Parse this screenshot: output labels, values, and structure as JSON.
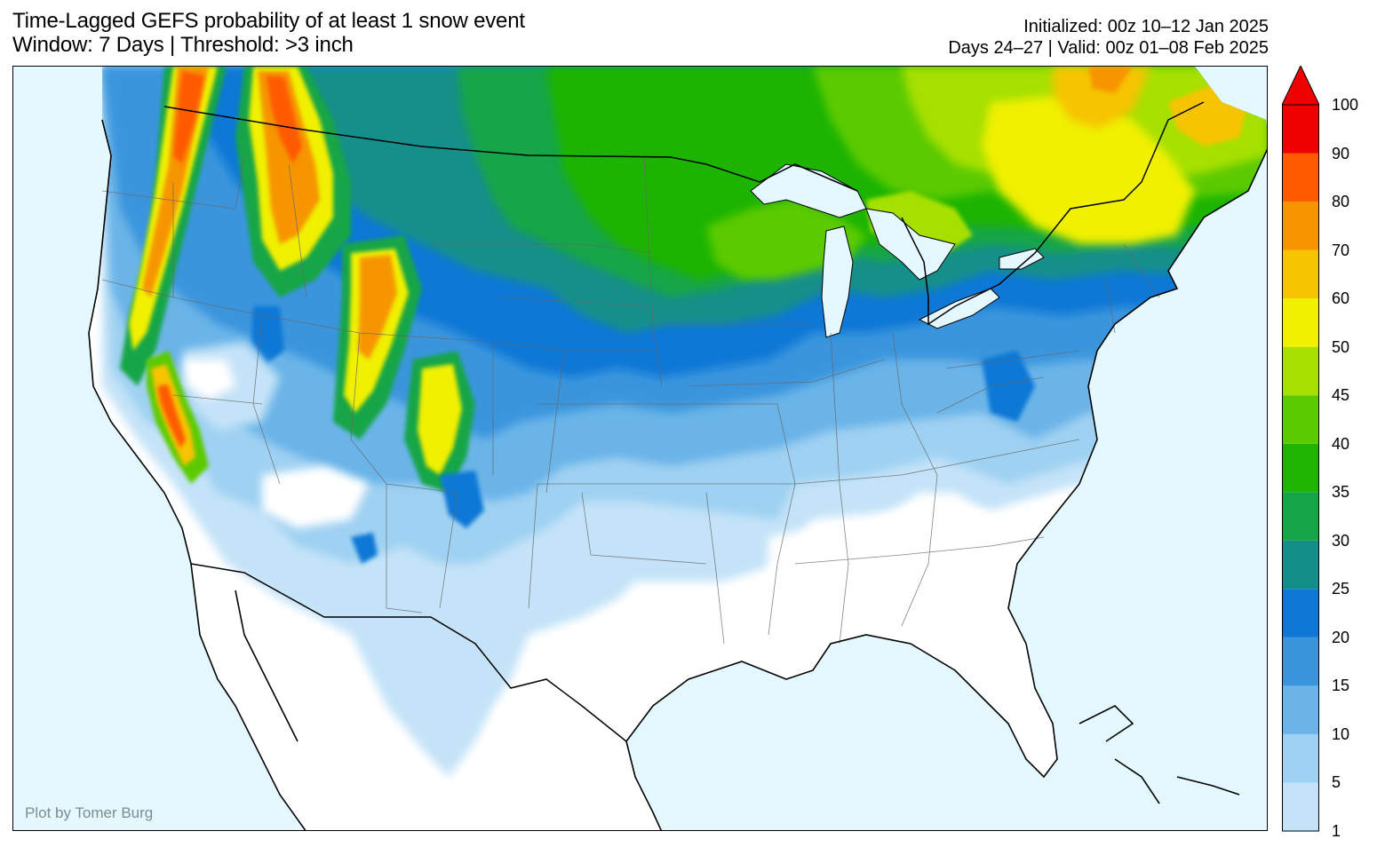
{
  "header": {
    "title_line1": "Time-Lagged GEFS probability of at least 1 snow event",
    "title_line2": "Window: 7 Days | Threshold: >3 inch",
    "init_line": "Initialized: 00z 10–12 Jan 2025",
    "valid_line": "Days 24–27 | Valid: 00z 01–08 Feb 2025"
  },
  "credit": "Plot by Tomer Burg",
  "colorbar": {
    "levels": [
      "1",
      "5",
      "10",
      "15",
      "20",
      "25",
      "30",
      "35",
      "40",
      "45",
      "50",
      "60",
      "70",
      "80",
      "90",
      "100"
    ],
    "colors": [
      "#c4e3f8",
      "#9fd1f2",
      "#6bb4e8",
      "#3b95dd",
      "#0f78d6",
      "#138f8a",
      "#14a547",
      "#1fb400",
      "#5bca00",
      "#a6e000",
      "#f0f000",
      "#f6c400",
      "#f69500",
      "#ff5a00",
      "#ee0000"
    ],
    "extend_color": "#ee0000"
  },
  "map_colors": {
    "ocean": "#e3f8ff",
    "land": "#ffffff"
  }
}
